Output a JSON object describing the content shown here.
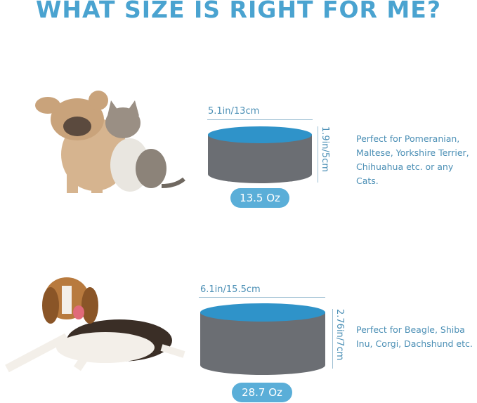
{
  "title": "WHAT SIZE IS RIGHT FOR ME?",
  "colors": {
    "accent": "#4aa3d0",
    "bowl_rim": "#2f93c9",
    "bowl_body": "#6b6e73"
  },
  "sizes": [
    {
      "animals": "french-bulldog-and-kitten",
      "diameter": "5.1in/13cm",
      "height": "1.9in/5cm",
      "capacity": "13.5 Oz",
      "description": "Perfect for Pomeranian, Maltese, Yorkshire Terrier, Chihuahua etc. or any Cats."
    },
    {
      "animals": "beagle",
      "diameter": "6.1in/15.5cm",
      "height": "2.76in/7cm",
      "capacity": "28.7 Oz",
      "description": "Perfect for Beagle, Shiba Inu, Corgi, Dachshund etc."
    }
  ]
}
